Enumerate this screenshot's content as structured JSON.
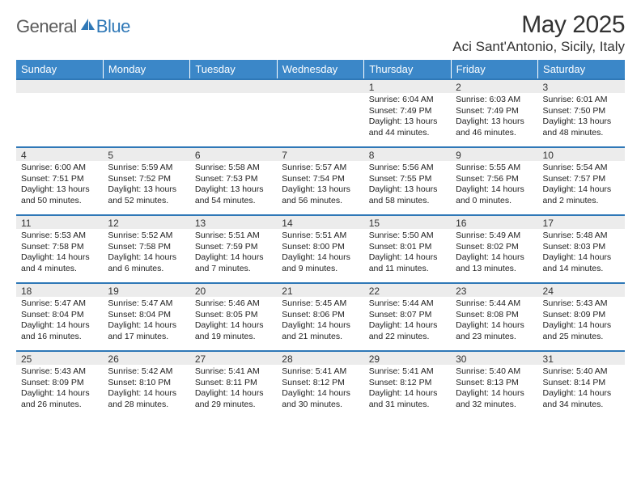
{
  "branding": {
    "logo_word1": "General",
    "logo_word2": "Blue",
    "logo_fill": "#2f78b7",
    "logo_gray": "#5a5a5a"
  },
  "header": {
    "month_title": "May 2025",
    "location": "Aci Sant'Antonio, Sicily, Italy"
  },
  "style": {
    "accent": "#3b87c8",
    "rule": "#2f78b7",
    "datebar_bg": "#ececec",
    "text_color": "#333333",
    "body_text": "#222222",
    "bg": "#ffffff",
    "header_text": "#ffffff",
    "title_fontsize": 30,
    "location_fontsize": 17,
    "dow_fontsize": 13,
    "date_fontsize": 12,
    "body_fontsize": 10.5
  },
  "days_of_week": [
    "Sunday",
    "Monday",
    "Tuesday",
    "Wednesday",
    "Thursday",
    "Friday",
    "Saturday"
  ],
  "weeks": [
    [
      {
        "date": "",
        "lines": []
      },
      {
        "date": "",
        "lines": []
      },
      {
        "date": "",
        "lines": []
      },
      {
        "date": "",
        "lines": []
      },
      {
        "date": "1",
        "lines": [
          "Sunrise: 6:04 AM",
          "Sunset: 7:49 PM",
          "Daylight: 13 hours",
          "and 44 minutes."
        ]
      },
      {
        "date": "2",
        "lines": [
          "Sunrise: 6:03 AM",
          "Sunset: 7:49 PM",
          "Daylight: 13 hours",
          "and 46 minutes."
        ]
      },
      {
        "date": "3",
        "lines": [
          "Sunrise: 6:01 AM",
          "Sunset: 7:50 PM",
          "Daylight: 13 hours",
          "and 48 minutes."
        ]
      }
    ],
    [
      {
        "date": "4",
        "lines": [
          "Sunrise: 6:00 AM",
          "Sunset: 7:51 PM",
          "Daylight: 13 hours",
          "and 50 minutes."
        ]
      },
      {
        "date": "5",
        "lines": [
          "Sunrise: 5:59 AM",
          "Sunset: 7:52 PM",
          "Daylight: 13 hours",
          "and 52 minutes."
        ]
      },
      {
        "date": "6",
        "lines": [
          "Sunrise: 5:58 AM",
          "Sunset: 7:53 PM",
          "Daylight: 13 hours",
          "and 54 minutes."
        ]
      },
      {
        "date": "7",
        "lines": [
          "Sunrise: 5:57 AM",
          "Sunset: 7:54 PM",
          "Daylight: 13 hours",
          "and 56 minutes."
        ]
      },
      {
        "date": "8",
        "lines": [
          "Sunrise: 5:56 AM",
          "Sunset: 7:55 PM",
          "Daylight: 13 hours",
          "and 58 minutes."
        ]
      },
      {
        "date": "9",
        "lines": [
          "Sunrise: 5:55 AM",
          "Sunset: 7:56 PM",
          "Daylight: 14 hours",
          "and 0 minutes."
        ]
      },
      {
        "date": "10",
        "lines": [
          "Sunrise: 5:54 AM",
          "Sunset: 7:57 PM",
          "Daylight: 14 hours",
          "and 2 minutes."
        ]
      }
    ],
    [
      {
        "date": "11",
        "lines": [
          "Sunrise: 5:53 AM",
          "Sunset: 7:58 PM",
          "Daylight: 14 hours",
          "and 4 minutes."
        ]
      },
      {
        "date": "12",
        "lines": [
          "Sunrise: 5:52 AM",
          "Sunset: 7:58 PM",
          "Daylight: 14 hours",
          "and 6 minutes."
        ]
      },
      {
        "date": "13",
        "lines": [
          "Sunrise: 5:51 AM",
          "Sunset: 7:59 PM",
          "Daylight: 14 hours",
          "and 7 minutes."
        ]
      },
      {
        "date": "14",
        "lines": [
          "Sunrise: 5:51 AM",
          "Sunset: 8:00 PM",
          "Daylight: 14 hours",
          "and 9 minutes."
        ]
      },
      {
        "date": "15",
        "lines": [
          "Sunrise: 5:50 AM",
          "Sunset: 8:01 PM",
          "Daylight: 14 hours",
          "and 11 minutes."
        ]
      },
      {
        "date": "16",
        "lines": [
          "Sunrise: 5:49 AM",
          "Sunset: 8:02 PM",
          "Daylight: 14 hours",
          "and 13 minutes."
        ]
      },
      {
        "date": "17",
        "lines": [
          "Sunrise: 5:48 AM",
          "Sunset: 8:03 PM",
          "Daylight: 14 hours",
          "and 14 minutes."
        ]
      }
    ],
    [
      {
        "date": "18",
        "lines": [
          "Sunrise: 5:47 AM",
          "Sunset: 8:04 PM",
          "Daylight: 14 hours",
          "and 16 minutes."
        ]
      },
      {
        "date": "19",
        "lines": [
          "Sunrise: 5:47 AM",
          "Sunset: 8:04 PM",
          "Daylight: 14 hours",
          "and 17 minutes."
        ]
      },
      {
        "date": "20",
        "lines": [
          "Sunrise: 5:46 AM",
          "Sunset: 8:05 PM",
          "Daylight: 14 hours",
          "and 19 minutes."
        ]
      },
      {
        "date": "21",
        "lines": [
          "Sunrise: 5:45 AM",
          "Sunset: 8:06 PM",
          "Daylight: 14 hours",
          "and 21 minutes."
        ]
      },
      {
        "date": "22",
        "lines": [
          "Sunrise: 5:44 AM",
          "Sunset: 8:07 PM",
          "Daylight: 14 hours",
          "and 22 minutes."
        ]
      },
      {
        "date": "23",
        "lines": [
          "Sunrise: 5:44 AM",
          "Sunset: 8:08 PM",
          "Daylight: 14 hours",
          "and 23 minutes."
        ]
      },
      {
        "date": "24",
        "lines": [
          "Sunrise: 5:43 AM",
          "Sunset: 8:09 PM",
          "Daylight: 14 hours",
          "and 25 minutes."
        ]
      }
    ],
    [
      {
        "date": "25",
        "lines": [
          "Sunrise: 5:43 AM",
          "Sunset: 8:09 PM",
          "Daylight: 14 hours",
          "and 26 minutes."
        ]
      },
      {
        "date": "26",
        "lines": [
          "Sunrise: 5:42 AM",
          "Sunset: 8:10 PM",
          "Daylight: 14 hours",
          "and 28 minutes."
        ]
      },
      {
        "date": "27",
        "lines": [
          "Sunrise: 5:41 AM",
          "Sunset: 8:11 PM",
          "Daylight: 14 hours",
          "and 29 minutes."
        ]
      },
      {
        "date": "28",
        "lines": [
          "Sunrise: 5:41 AM",
          "Sunset: 8:12 PM",
          "Daylight: 14 hours",
          "and 30 minutes."
        ]
      },
      {
        "date": "29",
        "lines": [
          "Sunrise: 5:41 AM",
          "Sunset: 8:12 PM",
          "Daylight: 14 hours",
          "and 31 minutes."
        ]
      },
      {
        "date": "30",
        "lines": [
          "Sunrise: 5:40 AM",
          "Sunset: 8:13 PM",
          "Daylight: 14 hours",
          "and 32 minutes."
        ]
      },
      {
        "date": "31",
        "lines": [
          "Sunrise: 5:40 AM",
          "Sunset: 8:14 PM",
          "Daylight: 14 hours",
          "and 34 minutes."
        ]
      }
    ]
  ]
}
